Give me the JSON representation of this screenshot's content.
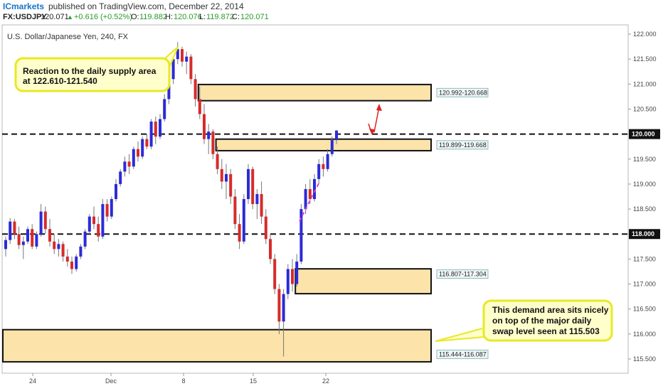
{
  "header": {
    "brand": "ICmarkets",
    "published_text": "published on TradingView.com, December 22, 2014",
    "symbol": "FX:USDJPY",
    "last": "120.071",
    "change": "+0.616 (+0.52%)",
    "o_label": "O:",
    "o_val": "119.882",
    "h_label": "H:",
    "h_val": "120.076",
    "l_label": "L:",
    "l_val": "119.872",
    "c_label": "C:",
    "c_val": "120.071"
  },
  "colors": {
    "up": "#2b2bd6",
    "down": "#d62b2b",
    "zone_fill": "#fbe3aa",
    "callout_fill": "#ffffcc",
    "callout_stroke": "#e8e825",
    "arrow": "#e02020",
    "trend": "#e040e0"
  },
  "chart_data": {
    "type": "candlestick",
    "title": "U.S. Dollar/Japanese Yen, 240, FX",
    "ylim": [
      115.3,
      122.1
    ],
    "y_ticks": [
      "122.000",
      "121.500",
      "121.000",
      "120.500",
      "120.000",
      "119.500",
      "119.000",
      "118.500",
      "118.000",
      "117.500",
      "117.000",
      "116.500",
      "116.000",
      "115.500"
    ],
    "x_ticks": [
      "24",
      "Dec",
      "8",
      "15",
      "22"
    ],
    "levels": [
      {
        "price": 120.0,
        "label": "120.000"
      },
      {
        "price": 118.0,
        "label": "118.000"
      }
    ],
    "zones": [
      {
        "label": "120.992-120.668",
        "top": 120.992,
        "bottom": 120.668,
        "start_bar": 44
      },
      {
        "label": "119.899-119.668",
        "top": 119.899,
        "bottom": 119.668,
        "start_bar": 48
      },
      {
        "label": "116.807-117.304",
        "top": 117.304,
        "bottom": 116.807,
        "start_bar": 66
      },
      {
        "label": "115.444-116.087",
        "top": 116.087,
        "bottom": 115.444,
        "start_bar": 0
      }
    ],
    "annotations": [
      {
        "text": [
          "Reaction to the daily supply area",
          "at 122.610-121.540"
        ]
      },
      {
        "text": [
          "This demand area sits nicely",
          "on top of the major daily",
          "swap level seen at 115.503"
        ]
      }
    ],
    "candles": [
      [
        117.7,
        117.95,
        117.55,
        117.88
      ],
      [
        117.88,
        118.32,
        117.8,
        118.25
      ],
      [
        118.25,
        118.3,
        117.9,
        118.0
      ],
      [
        118.0,
        118.15,
        117.7,
        117.78
      ],
      [
        117.78,
        117.95,
        117.5,
        117.85
      ],
      [
        117.85,
        118.15,
        117.8,
        118.1
      ],
      [
        118.1,
        118.2,
        117.7,
        117.75
      ],
      [
        117.75,
        118.05,
        117.7,
        118.0
      ],
      [
        118.0,
        118.6,
        117.95,
        118.45
      ],
      [
        118.45,
        118.55,
        118.0,
        118.1
      ],
      [
        118.1,
        118.3,
        117.75,
        117.85
      ],
      [
        117.85,
        118.0,
        117.6,
        117.7
      ],
      [
        117.7,
        117.9,
        117.55,
        117.8
      ],
      [
        117.8,
        117.85,
        117.45,
        117.55
      ],
      [
        117.55,
        117.7,
        117.35,
        117.45
      ],
      [
        117.45,
        117.55,
        117.2,
        117.3
      ],
      [
        117.3,
        117.6,
        117.25,
        117.55
      ],
      [
        117.55,
        117.8,
        117.5,
        117.75
      ],
      [
        117.75,
        118.1,
        117.7,
        118.05
      ],
      [
        118.05,
        118.4,
        118.0,
        118.35
      ],
      [
        118.35,
        118.55,
        118.1,
        118.2
      ],
      [
        118.2,
        118.35,
        117.85,
        117.95
      ],
      [
        117.95,
        118.7,
        117.9,
        118.6
      ],
      [
        118.6,
        118.7,
        118.25,
        118.35
      ],
      [
        118.35,
        118.75,
        118.3,
        118.7
      ],
      [
        118.7,
        119.1,
        118.65,
        119.0
      ],
      [
        119.0,
        119.3,
        118.95,
        119.25
      ],
      [
        119.25,
        119.55,
        119.15,
        119.45
      ],
      [
        119.45,
        119.6,
        119.2,
        119.35
      ],
      [
        119.35,
        119.75,
        119.3,
        119.7
      ],
      [
        119.7,
        119.85,
        119.45,
        119.55
      ],
      [
        119.55,
        119.95,
        119.5,
        119.9
      ],
      [
        119.9,
        120.0,
        119.7,
        119.75
      ],
      [
        119.75,
        120.3,
        119.7,
        120.25
      ],
      [
        120.25,
        120.35,
        119.8,
        119.95
      ],
      [
        119.95,
        120.4,
        119.9,
        120.3
      ],
      [
        120.3,
        120.8,
        120.25,
        120.7
      ],
      [
        120.7,
        121.2,
        120.6,
        121.1
      ],
      [
        121.1,
        121.6,
        121.0,
        121.5
      ],
      [
        121.5,
        121.84,
        121.4,
        121.7
      ],
      [
        121.7,
        121.75,
        121.35,
        121.45
      ],
      [
        121.45,
        121.65,
        121.2,
        121.55
      ],
      [
        121.55,
        121.6,
        121.0,
        121.1
      ],
      [
        121.1,
        121.2,
        120.55,
        120.7
      ],
      [
        120.7,
        120.95,
        120.3,
        120.4
      ],
      [
        120.4,
        120.6,
        119.8,
        119.9
      ],
      [
        119.9,
        120.2,
        119.6,
        120.05
      ],
      [
        120.05,
        120.1,
        119.5,
        119.6
      ],
      [
        119.6,
        119.75,
        119.2,
        119.3
      ],
      [
        119.3,
        119.5,
        118.9,
        119.05
      ],
      [
        119.05,
        119.4,
        118.7,
        119.2
      ],
      [
        119.2,
        119.3,
        118.6,
        118.75
      ],
      [
        118.75,
        118.9,
        118.1,
        118.2
      ],
      [
        118.2,
        118.4,
        117.7,
        117.85
      ],
      [
        117.85,
        118.8,
        117.8,
        118.7
      ],
      [
        118.7,
        119.4,
        118.6,
        119.3
      ],
      [
        119.3,
        119.35,
        118.5,
        118.6
      ],
      [
        118.6,
        118.9,
        118.3,
        118.8
      ],
      [
        118.8,
        119.05,
        118.2,
        118.35
      ],
      [
        118.35,
        118.5,
        117.8,
        117.9
      ],
      [
        117.9,
        118.0,
        117.4,
        117.5
      ],
      [
        117.5,
        117.6,
        116.8,
        116.9
      ],
      [
        116.9,
        117.0,
        116.0,
        116.25
      ],
      [
        116.25,
        116.9,
        115.55,
        116.8
      ],
      [
        116.8,
        117.4,
        116.7,
        117.3
      ],
      [
        117.3,
        117.5,
        116.85,
        117.0
      ],
      [
        117.0,
        117.6,
        116.95,
        117.45
      ],
      [
        117.45,
        118.6,
        117.4,
        118.5
      ],
      [
        118.5,
        119.0,
        118.4,
        118.9
      ],
      [
        118.9,
        119.1,
        118.6,
        118.7
      ],
      [
        118.7,
        119.2,
        118.65,
        119.1
      ],
      [
        119.1,
        119.5,
        119.0,
        119.4
      ],
      [
        119.4,
        119.55,
        119.15,
        119.3
      ],
      [
        119.3,
        119.7,
        119.25,
        119.6
      ],
      [
        119.6,
        119.95,
        119.55,
        119.88
      ],
      [
        119.88,
        120.076,
        119.8,
        120.071
      ]
    ]
  }
}
